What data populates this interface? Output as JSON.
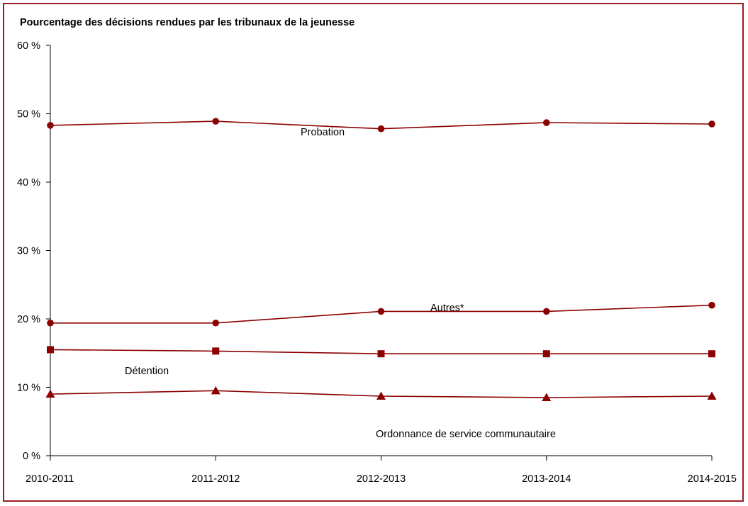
{
  "chart_data": {
    "type": "line",
    "title": "Pourcentage des décisions rendues par les tribunaux de la jeunesse",
    "xlabel": "",
    "ylabel": "",
    "categories": [
      "2010-2011",
      "2011-2012",
      "2012-2013",
      "2013-2014",
      "2014-2015"
    ],
    "ylim": [
      0,
      60
    ],
    "yticks": [
      0,
      10,
      20,
      30,
      40,
      50,
      60
    ],
    "ytick_labels": [
      "0 %",
      "10 %",
      "20 %",
      "30 %",
      "40 %",
      "50 %",
      "60 %"
    ],
    "grid": false,
    "legend": "none",
    "series": [
      {
        "name": "Probation",
        "marker": "circle",
        "values": [
          48.3,
          48.9,
          47.8,
          48.7,
          48.5
        ]
      },
      {
        "name": "Autres*",
        "marker": "circle",
        "values": [
          19.4,
          19.4,
          21.1,
          21.1,
          22.0
        ]
      },
      {
        "name": "Détention",
        "marker": "square",
        "values": [
          15.5,
          15.3,
          14.9,
          14.9,
          14.9
        ]
      },
      {
        "name": "Ordonnance de service communautaire",
        "marker": "triangle",
        "values": [
          9.0,
          9.5,
          8.7,
          8.5,
          8.7
        ]
      }
    ]
  },
  "colors": {
    "series": "#8b0000",
    "frame": "#9b1c24",
    "axis": "#000000"
  }
}
